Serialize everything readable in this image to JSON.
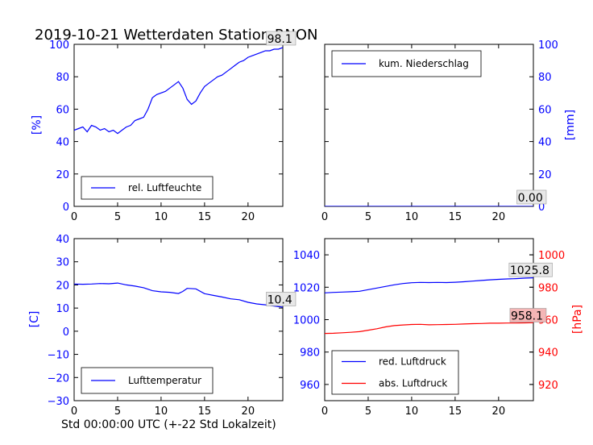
{
  "title": "2019-10-21 Wetterdaten Station RNON",
  "xlabel": "Std 00:00:00 UTC (+-22 Std Lokalzeit)",
  "colors": {
    "blue": "#0000ff",
    "red": "#ff0000",
    "axis": "#000000",
    "ann_bg": "#e8e8e8",
    "ann_bg_red": "#f4b6b6"
  },
  "chart_data": [
    {
      "type": "line",
      "id": "humidity",
      "xlim": [
        0,
        24
      ],
      "ylim": [
        0,
        100
      ],
      "xticks": [
        0,
        5,
        10,
        15,
        20
      ],
      "yticks": [
        0,
        20,
        40,
        60,
        80,
        100
      ],
      "ylabel": "[%]",
      "ylabel_side": "left",
      "legend_position": "bottom-left",
      "series": [
        {
          "name": "rel. Luftfeuchte",
          "color": "#0000ff",
          "x": [
            0,
            0.5,
            1,
            1.5,
            2,
            2.5,
            3,
            3.5,
            4,
            4.5,
            5,
            5.5,
            6,
            6.5,
            7,
            7.5,
            8,
            8.5,
            9,
            9.5,
            10,
            10.5,
            11,
            11.5,
            12,
            12.5,
            13,
            13.5,
            14,
            14.5,
            15,
            15.5,
            16,
            16.5,
            17,
            17.5,
            18,
            18.5,
            19,
            19.5,
            20,
            20.5,
            21,
            21.5,
            22,
            22.5,
            23,
            23.5,
            24
          ],
          "values": [
            47,
            48,
            49,
            46,
            50,
            49,
            47,
            48,
            46,
            47,
            45,
            47,
            49,
            50,
            53,
            54,
            55,
            60,
            67,
            69,
            70,
            71,
            73,
            75,
            77,
            73,
            66,
            63,
            65,
            70,
            74,
            76,
            78,
            80,
            81,
            83,
            85,
            87,
            89,
            90,
            92,
            93,
            94,
            95,
            96,
            96,
            97,
            97,
            98
          ]
        }
      ],
      "annotations": [
        {
          "text": "98.1",
          "x": 22.2,
          "y": 101
        }
      ]
    },
    {
      "type": "line",
      "id": "precipitation",
      "xlim": [
        0,
        24
      ],
      "ylim": [
        0,
        100
      ],
      "xticks": [
        0,
        5,
        10,
        15,
        20
      ],
      "yticks": [
        0,
        20,
        40,
        60,
        80,
        100
      ],
      "ylabel": "[mm]",
      "ylabel_side": "right",
      "legend_position": "top-left",
      "series": [
        {
          "name": "kum. Niederschlag",
          "color": "#0000ff",
          "x": [
            0,
            24
          ],
          "values": [
            0,
            0
          ]
        }
      ],
      "annotations": [
        {
          "text": "0.00",
          "x": 22.2,
          "y": 3
        }
      ]
    },
    {
      "type": "line",
      "id": "temperature",
      "xlim": [
        0,
        24
      ],
      "ylim": [
        -30,
        40
      ],
      "xticks": [
        0,
        5,
        10,
        15,
        20
      ],
      "yticks": [
        -30,
        -20,
        -10,
        0,
        10,
        20,
        30,
        40
      ],
      "ylabel": "[C]",
      "ylabel_side": "left",
      "legend_position": "bottom-left",
      "series": [
        {
          "name": "Lufttemperatur",
          "color": "#0000ff",
          "x": [
            0,
            1,
            2,
            3,
            4,
            5,
            6,
            7,
            8,
            9,
            10,
            11,
            12,
            12.5,
            13,
            14,
            15,
            16,
            17,
            18,
            19,
            20,
            21,
            22,
            23,
            24
          ],
          "values": [
            20.4,
            20.3,
            20.4,
            20.6,
            20.5,
            20.8,
            20.0,
            19.5,
            18.8,
            17.5,
            17.0,
            16.8,
            16.3,
            17.2,
            18.5,
            18.3,
            16.2,
            15.5,
            14.8,
            14.0,
            13.6,
            12.5,
            11.8,
            11.4,
            10.9,
            10.4
          ]
        }
      ],
      "annotations": [
        {
          "text": "10.4",
          "x": 22.2,
          "y": 12
        }
      ]
    },
    {
      "type": "line",
      "id": "pressure",
      "xlim": [
        0,
        24
      ],
      "ylim": [
        950,
        1050
      ],
      "y2lim": [
        910,
        1010
      ],
      "xticks": [
        0,
        5,
        10,
        15,
        20
      ],
      "yticks": [
        960,
        980,
        1000,
        1020,
        1040
      ],
      "y2ticks": [
        920,
        940,
        960,
        980,
        1000
      ],
      "ylabel": "[hPa]",
      "ylabel_side": "right",
      "legend_position": "bottom-left",
      "series": [
        {
          "name": "red. Luftdruck",
          "color": "#0000ff",
          "axis": "left",
          "x": [
            0,
            1,
            2,
            3,
            4,
            5,
            6,
            7,
            8,
            9,
            10,
            11,
            12,
            13,
            14,
            15,
            16,
            17,
            18,
            19,
            20,
            21,
            22,
            23,
            24
          ],
          "values": [
            1016.5,
            1016.8,
            1017.0,
            1017.2,
            1017.5,
            1018.5,
            1019.5,
            1020.5,
            1021.5,
            1022.3,
            1022.8,
            1023.0,
            1022.9,
            1023.0,
            1022.9,
            1023.1,
            1023.4,
            1023.8,
            1024.2,
            1024.6,
            1024.9,
            1025.1,
            1025.3,
            1025.6,
            1025.8
          ]
        },
        {
          "name": "abs. Luftdruck",
          "color": "#ff0000",
          "axis": "right",
          "x": [
            0,
            1,
            2,
            3,
            4,
            5,
            6,
            7,
            8,
            9,
            10,
            11,
            12,
            13,
            14,
            15,
            16,
            17,
            18,
            19,
            20,
            21,
            22,
            23,
            24
          ],
          "values": [
            951.5,
            951.6,
            951.9,
            952.2,
            952.6,
            953.5,
            954.4,
            955.5,
            956.3,
            956.7,
            957.0,
            957.1,
            956.8,
            956.9,
            957.0,
            957.1,
            957.3,
            957.5,
            957.6,
            957.8,
            957.8,
            957.9,
            957.9,
            958.0,
            958.1
          ]
        }
      ],
      "annotations": [
        {
          "text": "1025.8",
          "x": 21.3,
          "y": 1028,
          "axis": "left"
        },
        {
          "text": "958.1",
          "x": 21.4,
          "y": 960,
          "axis": "right"
        }
      ]
    }
  ]
}
